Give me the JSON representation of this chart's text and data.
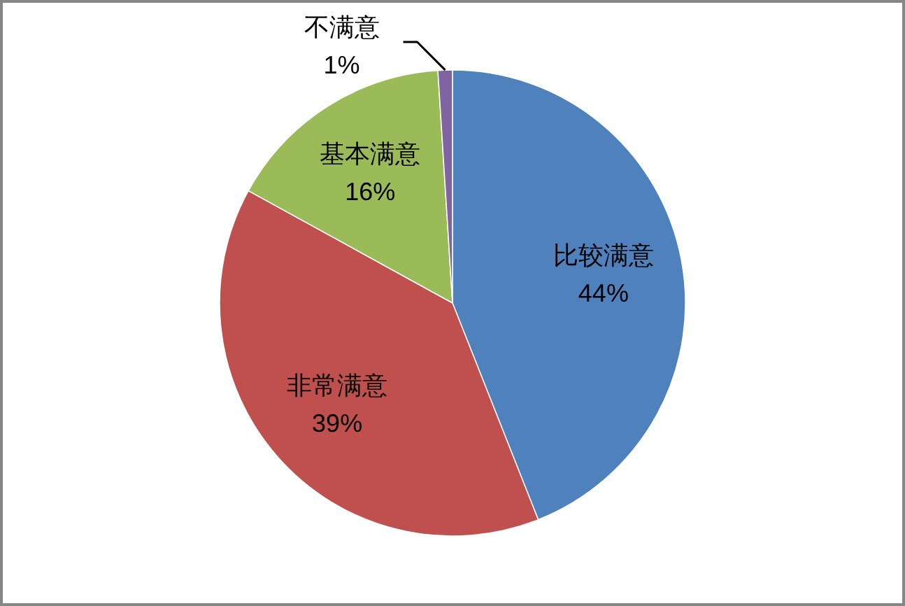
{
  "chart_data": {
    "type": "pie",
    "categories": [
      "比较满意",
      "非常满意",
      "基本满意",
      "不满意"
    ],
    "values": [
      44,
      39,
      16,
      1
    ],
    "colors": [
      "#4f81bd",
      "#c0504d",
      "#9bbb59",
      "#8064a2"
    ],
    "value_labels": [
      "44%",
      "39%",
      "16%",
      "1%"
    ]
  }
}
